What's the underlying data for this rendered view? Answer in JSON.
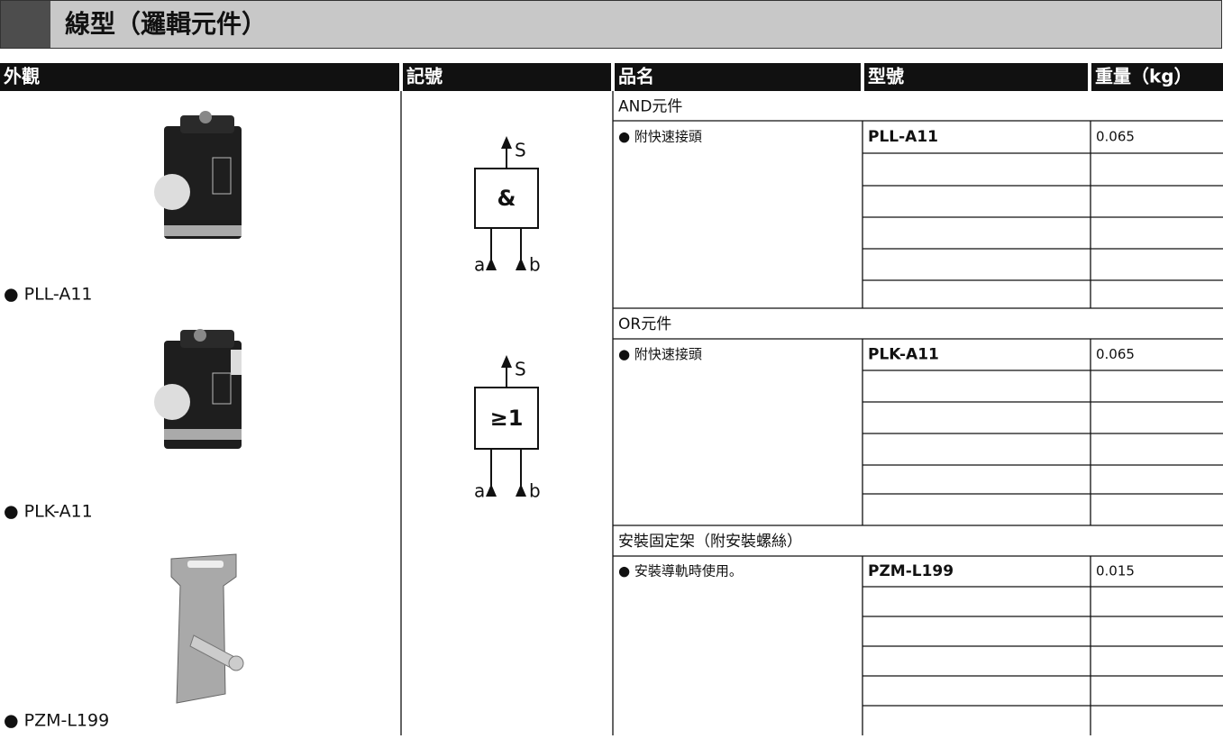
{
  "header": {
    "title": "線型（邏輯元件）"
  },
  "table": {
    "columns": [
      "外觀",
      "記號",
      "品名",
      "型號",
      "重量（kg）"
    ]
  },
  "products": [
    {
      "label": "● PLL-A11"
    },
    {
      "label": "● PLK-A11"
    },
    {
      "label": "● PZM-L199"
    }
  ],
  "symbols": [
    {
      "output": "S",
      "operator": "&",
      "input_a": "a",
      "input_b": "b"
    },
    {
      "output": "S",
      "operator": "≥1",
      "input_a": "a",
      "input_b": "b"
    }
  ],
  "sections": [
    {
      "title": "AND元件",
      "item": {
        "name": "● 附快速接頭",
        "model": "PLL-A11",
        "weight": "0.065"
      }
    },
    {
      "title": "OR元件",
      "item": {
        "name": "● 附快速接頭",
        "model": "PLK-A11",
        "weight": "0.065"
      }
    },
    {
      "title": "安裝固定架（附安裝螺絲）",
      "item": {
        "name": "● 安裝導軌時使用。",
        "model": "PZM-L199",
        "weight": "0.015"
      }
    }
  ]
}
